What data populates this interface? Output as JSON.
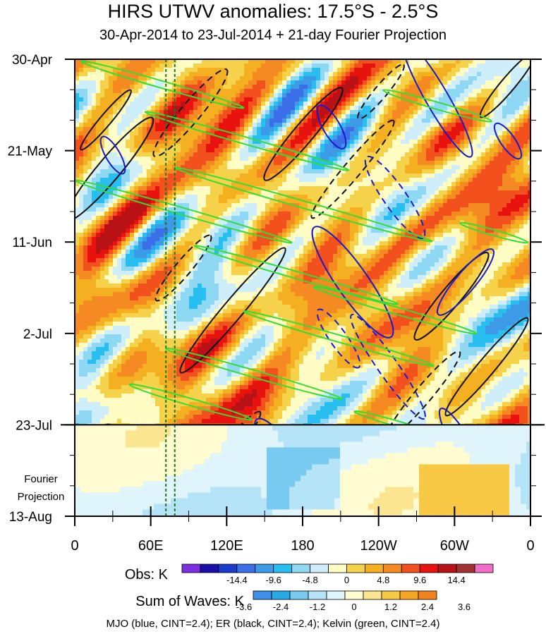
{
  "chart_data": {
    "type": "heatmap",
    "title": "HIRS UTWV anomalies: 17.5°S - 2.5°S",
    "subtitle": "30-Apr-2014 to 23-Jul-2014 + 21-day Fourier Projection",
    "x_ticks": [
      "0",
      "60E",
      "120E",
      "180",
      "120W",
      "60W",
      "0"
    ],
    "x_values": [
      0,
      60,
      120,
      180,
      240,
      300,
      360
    ],
    "y_ticks": [
      "30-Apr",
      "21-May",
      "11-Jun",
      "2-Jul",
      "23-Jul",
      "13-Aug"
    ],
    "y_days": [
      0,
      21,
      42,
      63,
      84,
      105
    ],
    "projection_label_line1": "Fourier",
    "projection_label_line2": "Projection",
    "projection_start_day": 84,
    "vertical_markers_deg": [
      72,
      79
    ],
    "obs_colorbar": {
      "label": "Obs: K",
      "tick_labels": [
        "-14.4",
        "-9.6",
        "-4.8",
        "0",
        "4.8",
        "9.6",
        "14.4"
      ],
      "colors": [
        "#7d2fe0",
        "#1a0fa8",
        "#1a3ccc",
        "#3a6fe8",
        "#3d9ae6",
        "#28bff0",
        "#8ed8f4",
        "#cfeefb",
        "#fffdc4",
        "#f5d24a",
        "#f5b021",
        "#f58a23",
        "#f2501d",
        "#e8120f",
        "#b81216",
        "#a03232",
        "#f06ec8"
      ]
    },
    "waves_colorbar": {
      "label": "Sum of Waves: K",
      "tick_labels": [
        "-3.6",
        "-2.4",
        "-1.2",
        "0",
        "1.2",
        "2.4",
        "3.6"
      ],
      "colors": [
        "#3d8fe8",
        "#27aae8",
        "#79caf0",
        "#b5e3f7",
        "#dff4fb",
        "#fffcd2",
        "#fbe591",
        "#f8c945",
        "#f6a722",
        "#f28420"
      ]
    },
    "contours": [
      {
        "name": "MJO",
        "color": "blue",
        "cint": 2.4
      },
      {
        "name": "ER",
        "color": "black",
        "cint": 2.4
      },
      {
        "name": "Kelvin",
        "color": "green",
        "cint": 2.4
      }
    ],
    "footnote": "MJO (blue, CINT=2.4); ER (black, CINT=2.4); Kelvin (green, CINT=2.4)"
  }
}
